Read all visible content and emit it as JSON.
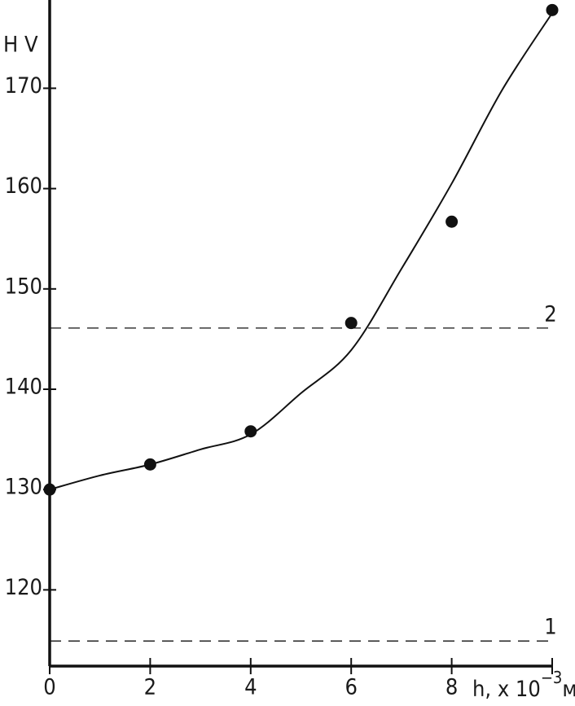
{
  "chart_data": {
    "type": "scatter",
    "ylabel": "H V",
    "xlabel": "h, x 10",
    "xlabel_exponent": "−3",
    "xlabel_unit": "м",
    "xlim": [
      0,
      10
    ],
    "ylim": [
      112.4,
      178.8
    ],
    "xticks": [
      0,
      2,
      4,
      6,
      8
    ],
    "yticks": [
      120,
      130,
      140,
      150,
      160,
      170
    ],
    "grid": false,
    "color": "#111111",
    "points": {
      "x": [
        0,
        2,
        4,
        6,
        8,
        10
      ],
      "values": [
        130,
        132.5,
        135.8,
        146.6,
        156.7,
        177.8
      ]
    },
    "curve": {
      "x": [
        0,
        1,
        2,
        3,
        4,
        5,
        6,
        7,
        8,
        9,
        10
      ],
      "values": [
        130,
        131.4,
        132.5,
        134,
        135.5,
        139.6,
        143.9,
        152,
        160.5,
        169.8,
        177.5
      ]
    },
    "reference_lines": [
      {
        "label": "1",
        "value": 114.9
      },
      {
        "label": "2",
        "value": 146.1
      }
    ]
  }
}
